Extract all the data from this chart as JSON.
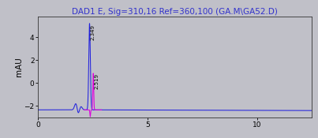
{
  "title": "DAD1 E, Sig=310,16 Ref=360,100 (GA.M\\GA52.D)",
  "title_color": "#3333cc",
  "ylabel": "mAU",
  "background_color": "#c0c0c8",
  "plot_bg_color": "#c0c0c8",
  "xlim": [
    0,
    12.5
  ],
  "ylim": [
    -3.0,
    5.8
  ],
  "yticks": [
    -2,
    0,
    2,
    4
  ],
  "xticks": [
    0,
    5,
    10
  ],
  "peak_blue_x": 2.349,
  "peak_blue_y": 5.2,
  "peak_pink_x": 2.519,
  "peak_pink_y": 0.85,
  "baseline_y": -2.35,
  "blue_color": "#2222dd",
  "pink_color": "#dd00dd",
  "title_fontsize": 7.5,
  "tick_fontsize": 6.5,
  "ylabel_fontsize": 7.5
}
